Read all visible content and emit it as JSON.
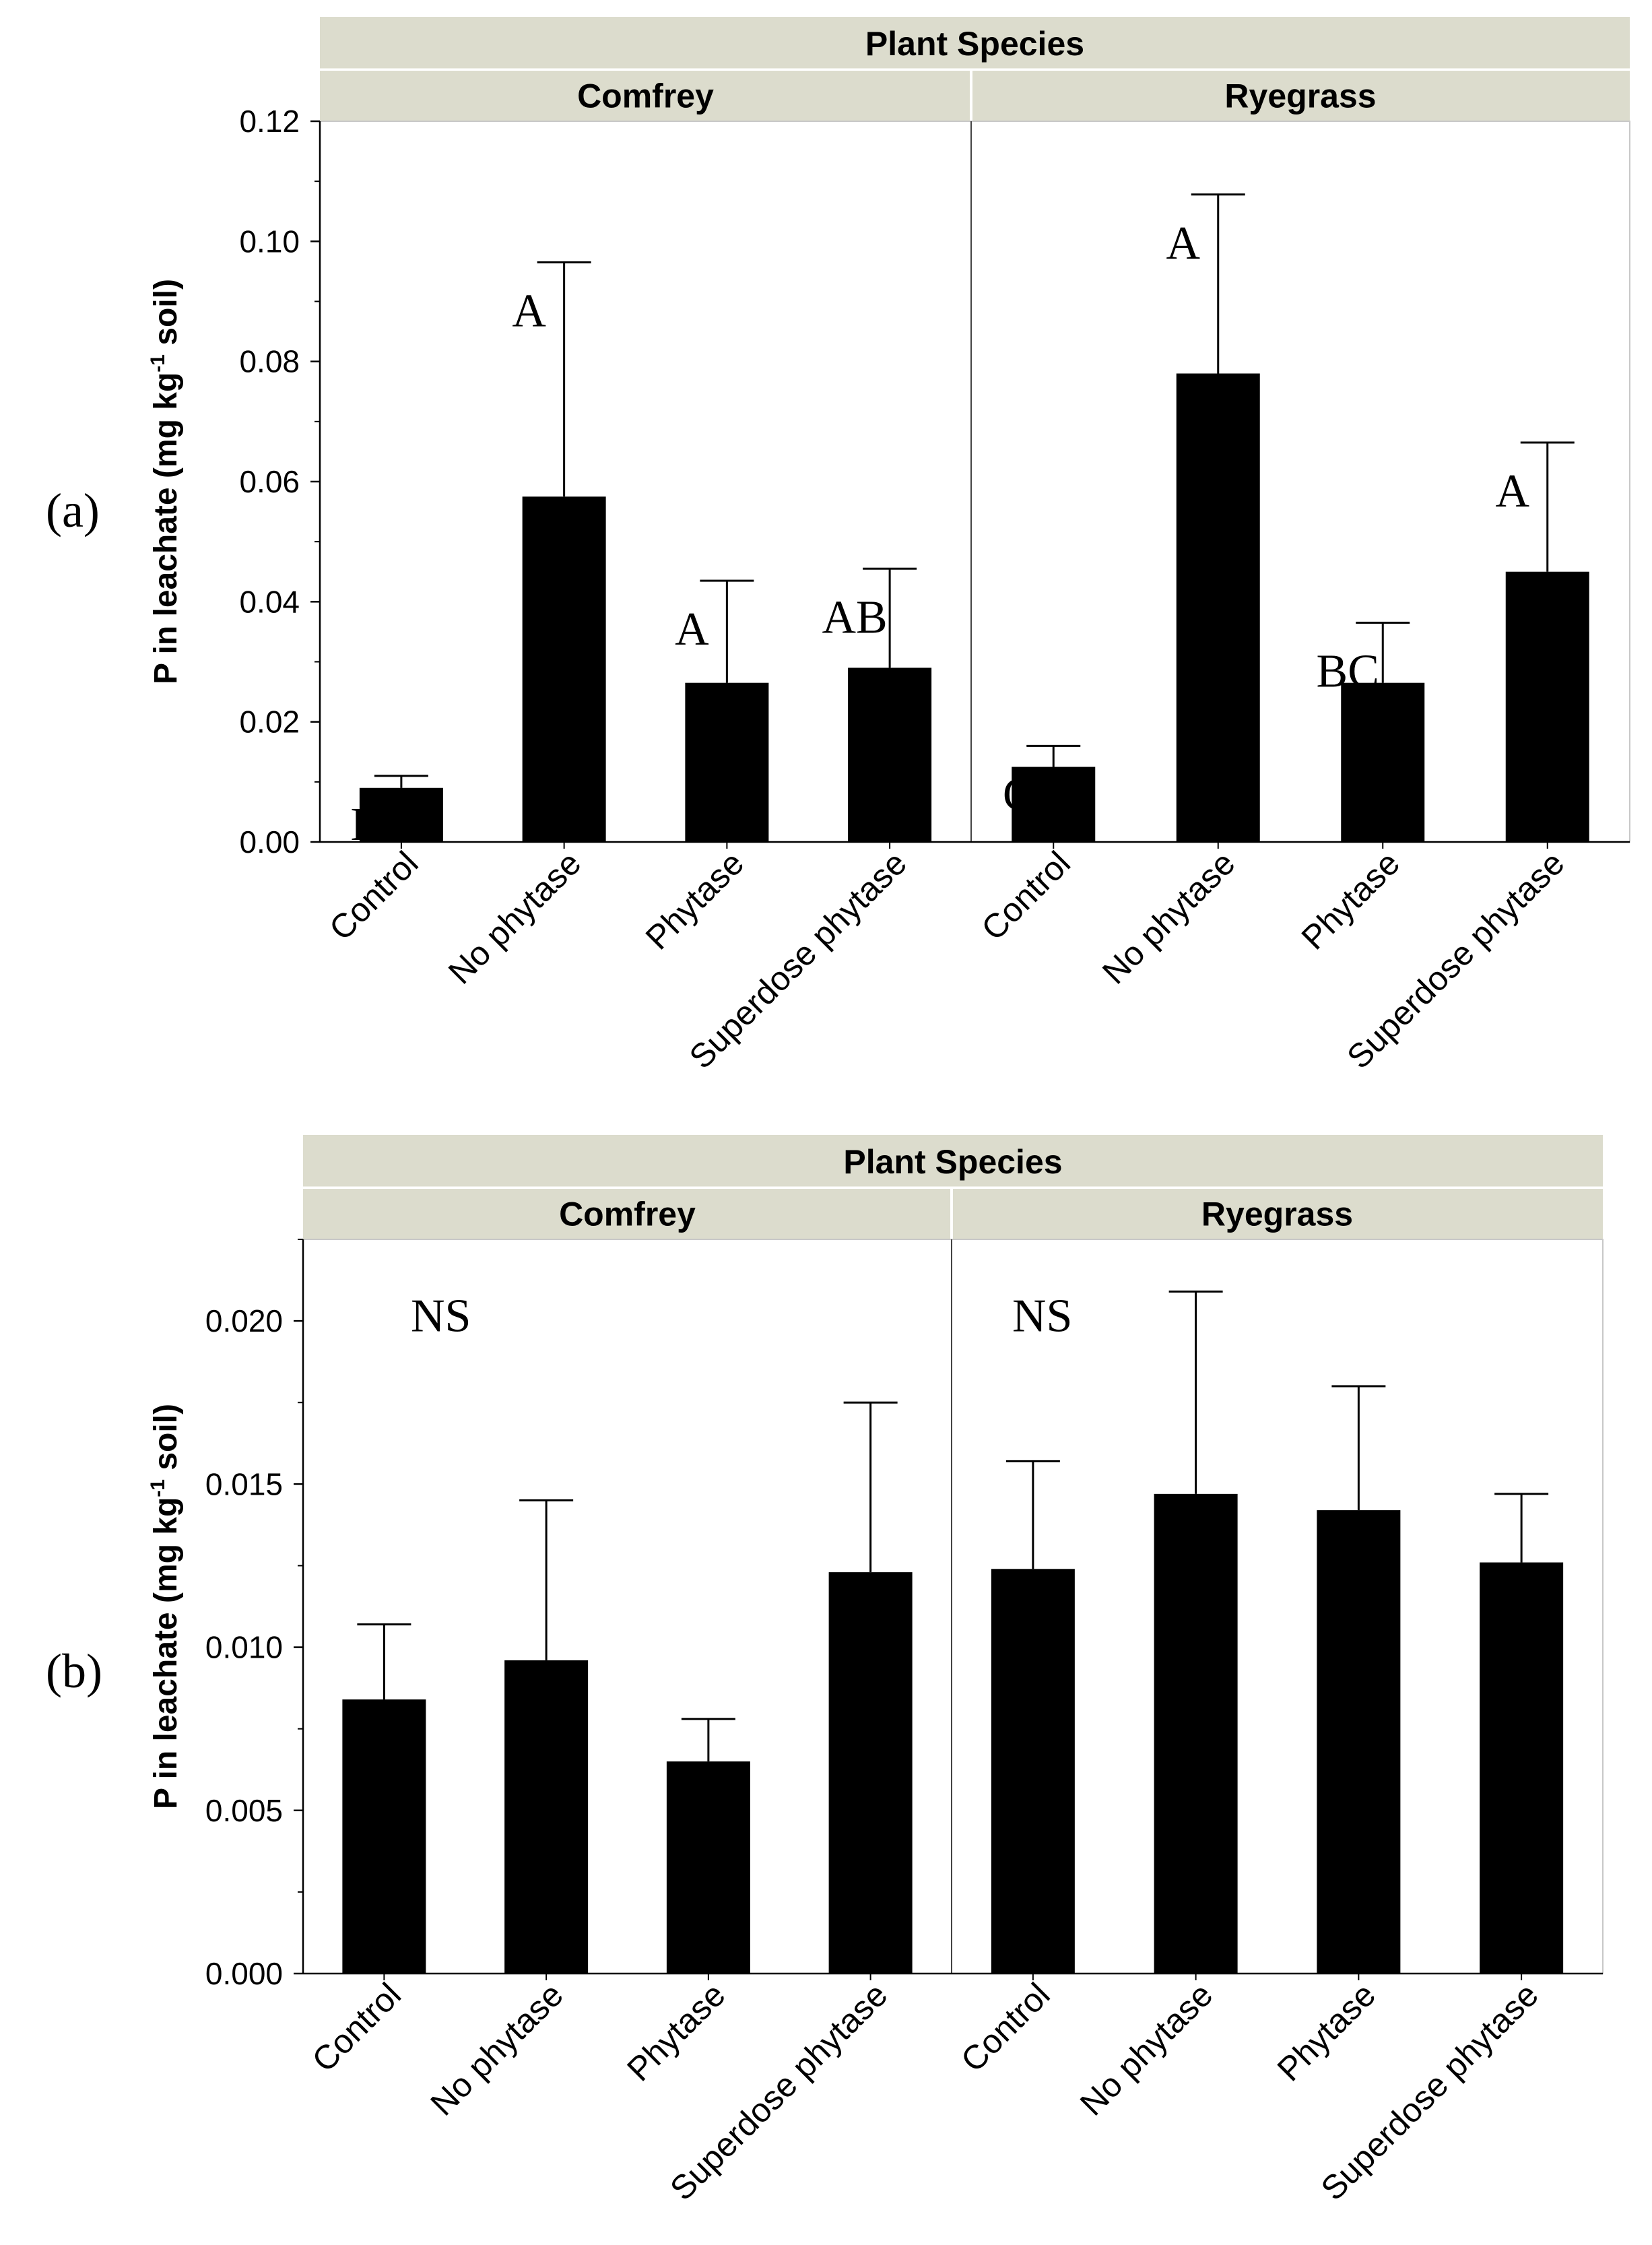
{
  "chart_data": [
    {
      "type": "bar",
      "panel_label": "(a)",
      "facet_title": "Plant Species",
      "facets": [
        "Comfrey",
        "Ryegrass"
      ],
      "categories": [
        "Control",
        "No phytase",
        "Phytase",
        "Superdose phytase"
      ],
      "ylabel": "P in leachate (mg kg-1 soil)",
      "ylabel_main": "P in leachate (mg kg",
      "ylabel_sup": "-1",
      "ylabel_tail": " soil)",
      "ylim": [
        0,
        0.12
      ],
      "yticks": [
        "0.00",
        "0.02",
        "0.04",
        "0.06",
        "0.08",
        "0.10",
        "0.12"
      ],
      "series": [
        {
          "facet": "Comfrey",
          "values": [
            0.009,
            0.0575,
            0.0265,
            0.029
          ],
          "error_upper": [
            0.011,
            0.0965,
            0.0435,
            0.0455
          ],
          "letters": [
            "B",
            "A",
            "A",
            "AB"
          ]
        },
        {
          "facet": "Ryegrass",
          "values": [
            0.0125,
            0.078,
            0.0265,
            0.045
          ],
          "error_upper": [
            0.016,
            0.1078,
            0.0365,
            0.0665
          ],
          "letters": [
            "C",
            "A",
            "BC",
            "A"
          ]
        }
      ],
      "grid": false,
      "bar_color": "#000000",
      "strip_color": "#dcdccd"
    },
    {
      "type": "bar",
      "panel_label": "(b)",
      "facet_title": "Plant Species",
      "facets": [
        "Comfrey",
        "Ryegrass"
      ],
      "categories": [
        "Control",
        "No phytase",
        "Phytase",
        "Superdose phytase"
      ],
      "ylabel": "P in leachate (mg kg-1 soil)",
      "ylabel_main": "P in leachate (mg kg",
      "ylabel_sup": "-1",
      "ylabel_tail": " soil)",
      "ylim": [
        0,
        0.0225
      ],
      "yticks": [
        "0.000",
        "0.005",
        "0.010",
        "0.015",
        "0.020"
      ],
      "series": [
        {
          "facet": "Comfrey",
          "values": [
            0.0084,
            0.0096,
            0.0065,
            0.0123
          ],
          "error_upper": [
            0.0107,
            0.0145,
            0.0078,
            0.0175
          ],
          "annotation": "NS"
        },
        {
          "facet": "Ryegrass",
          "values": [
            0.0124,
            0.0147,
            0.0142,
            0.0126
          ],
          "error_upper": [
            0.0157,
            0.0209,
            0.018,
            0.0147
          ],
          "annotation": "NS"
        }
      ],
      "grid": false,
      "bar_color": "#000000",
      "strip_color": "#dcdccd"
    }
  ]
}
